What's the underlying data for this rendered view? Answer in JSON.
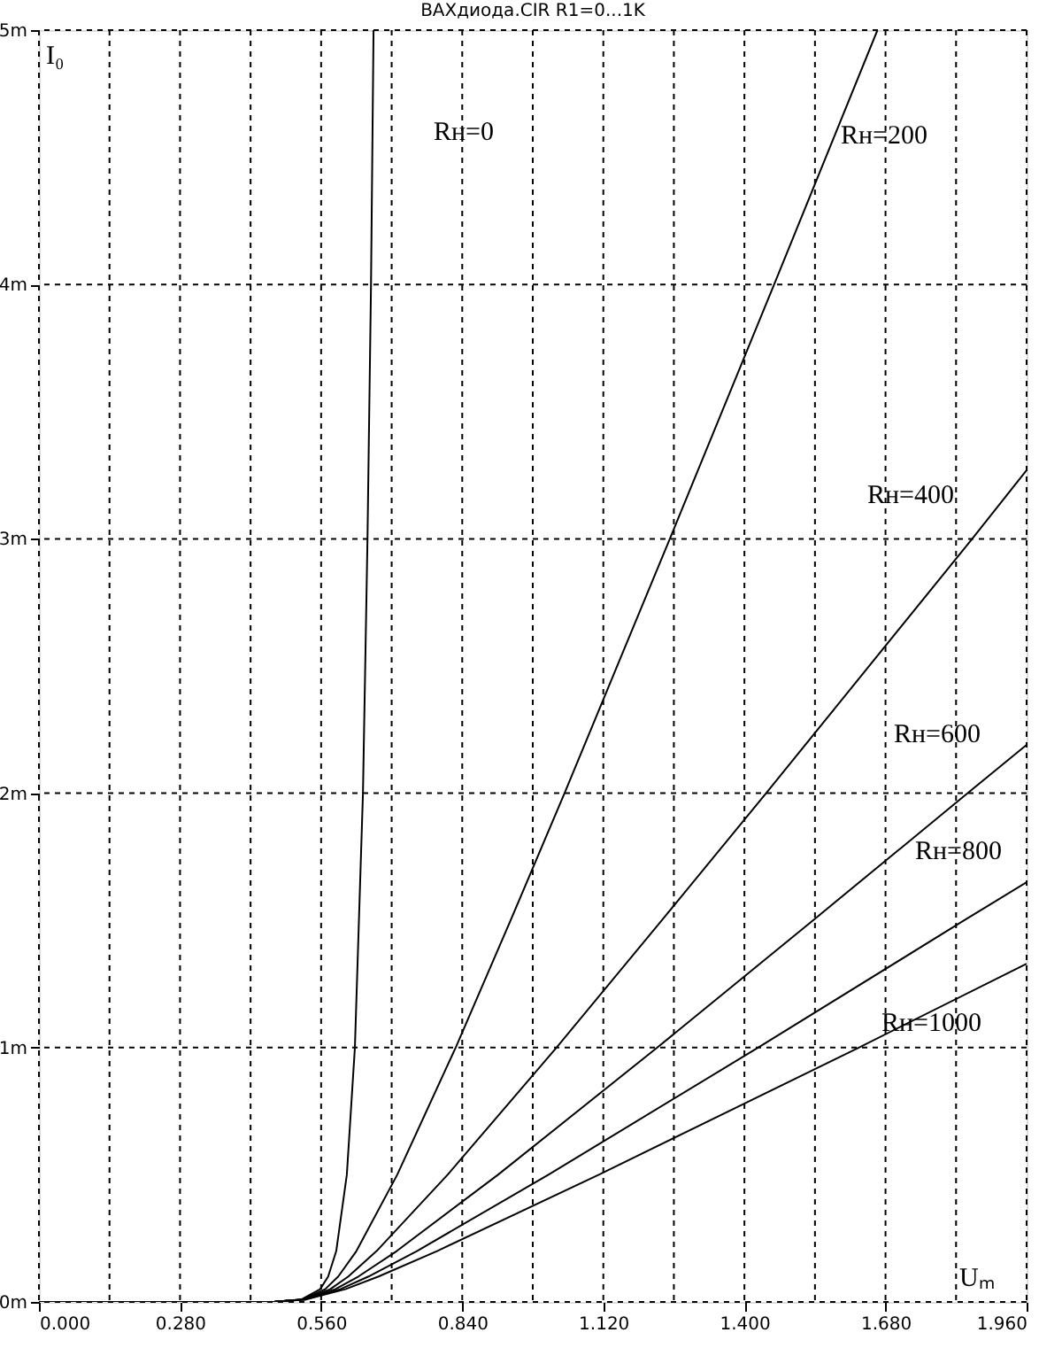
{
  "chart_data": {
    "type": "line",
    "title": "ВАХдиода.CIR R1=0...1K",
    "xlabel": "Uₘ",
    "ylabel": "I₀",
    "xlim": [
      0,
      1.96
    ],
    "ylim": [
      0,
      5
    ],
    "xticks": [
      {
        "value": 0,
        "label": "0.000"
      },
      {
        "value": 0.14,
        "label": null
      },
      {
        "value": 0.28,
        "label": "0.280"
      },
      {
        "value": 0.42,
        "label": null
      },
      {
        "value": 0.56,
        "label": "0.560"
      },
      {
        "value": 0.7,
        "label": null
      },
      {
        "value": 0.84,
        "label": "0.840"
      },
      {
        "value": 0.98,
        "label": null
      },
      {
        "value": 1.12,
        "label": "1.120"
      },
      {
        "value": 1.26,
        "label": null
      },
      {
        "value": 1.4,
        "label": "1.400"
      },
      {
        "value": 1.54,
        "label": null
      },
      {
        "value": 1.68,
        "label": "1.680"
      },
      {
        "value": 1.82,
        "label": null
      },
      {
        "value": 1.96,
        "label": "1.960"
      }
    ],
    "yticks": [
      {
        "value": 0,
        "label": "0m"
      },
      {
        "value": 1,
        "label": "1m"
      },
      {
        "value": 2,
        "label": "2m"
      },
      {
        "value": 3,
        "label": "3m"
      },
      {
        "value": 4,
        "label": "4m"
      },
      {
        "value": 5,
        "label": "5m"
      }
    ],
    "grid": true,
    "line_style": "solid",
    "series": [
      {
        "name": "Rн=0",
        "color": "#000000",
        "x": [
          0,
          0.3,
          0.468,
          0.521,
          0.558,
          0.574,
          0.59,
          0.611,
          0.627,
          0.643,
          0.652,
          0.659,
          0.664
        ],
        "values": [
          0,
          0,
          0.001,
          0.01,
          0.05,
          0.1,
          0.2,
          0.5,
          1,
          2,
          3,
          4,
          5
        ]
      },
      {
        "name": "Rн=200",
        "color": "#000000",
        "x": [
          0,
          0.3,
          0.468,
          0.523,
          0.568,
          0.594,
          0.63,
          0.711,
          0.827,
          0.936,
          1.043,
          1.252,
          1.459,
          1.664
        ],
        "values": [
          0,
          0,
          0.001,
          0.01,
          0.05,
          0.1,
          0.2,
          0.5,
          1,
          1.5,
          2,
          3,
          4,
          5
        ]
      },
      {
        "name": "Rн=400",
        "color": "#000000",
        "x": [
          0,
          0.3,
          0.468,
          0.525,
          0.578,
          0.614,
          0.67,
          0.811,
          1.027,
          1.236,
          1.443,
          1.852,
          1.96
        ],
        "values": [
          0,
          0,
          0.001,
          0.01,
          0.05,
          0.1,
          0.2,
          0.5,
          1,
          1.5,
          2,
          3,
          3.27
        ]
      },
      {
        "name": "Rн=600",
        "color": "#000000",
        "x": [
          0,
          0.3,
          0.468,
          0.527,
          0.588,
          0.634,
          0.71,
          0.911,
          1.227,
          1.536,
          1.843,
          1.96
        ],
        "values": [
          0,
          0,
          0.001,
          0.01,
          0.05,
          0.1,
          0.2,
          0.5,
          1,
          1.5,
          2,
          2.19
        ]
      },
      {
        "name": "Rн=800",
        "color": "#000000",
        "x": [
          0,
          0.3,
          0.468,
          0.529,
          0.598,
          0.654,
          0.75,
          1.011,
          1.427,
          1.836,
          1.96
        ],
        "values": [
          0,
          0,
          0.001,
          0.01,
          0.05,
          0.1,
          0.2,
          0.5,
          1,
          1.5,
          1.65
        ]
      },
      {
        "name": "Rн=1000",
        "color": "#000000",
        "x": [
          0,
          0.3,
          0.468,
          0.531,
          0.608,
          0.674,
          0.79,
          1.111,
          1.627,
          1.96
        ],
        "values": [
          0,
          0,
          0.001,
          0.01,
          0.05,
          0.1,
          0.2,
          0.5,
          1,
          1.33
        ]
      }
    ]
  }
}
